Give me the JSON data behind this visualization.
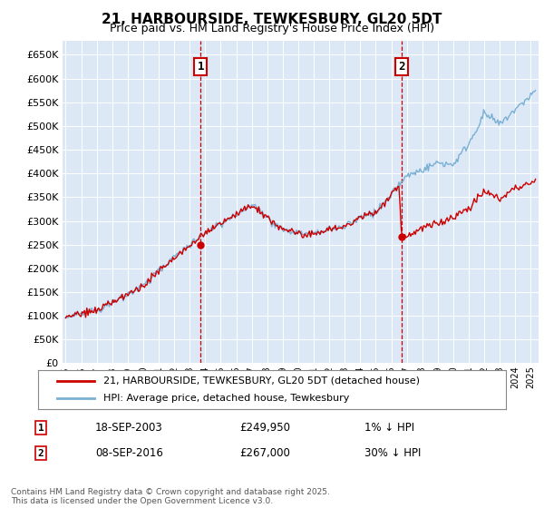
{
  "title": "21, HARBOURSIDE, TEWKESBURY, GL20 5DT",
  "subtitle": "Price paid vs. HM Land Registry's House Price Index (HPI)",
  "legend_label_red": "21, HARBOURSIDE, TEWKESBURY, GL20 5DT (detached house)",
  "legend_label_blue": "HPI: Average price, detached house, Tewkesbury",
  "footnote": "Contains HM Land Registry data © Crown copyright and database right 2025.\nThis data is licensed under the Open Government Licence v3.0.",
  "marker1_label": "1",
  "marker1_date": "18-SEP-2003",
  "marker1_price": "£249,950",
  "marker1_hpi": "1% ↓ HPI",
  "marker1_year": 2003.71,
  "marker1_value": 249950,
  "marker2_label": "2",
  "marker2_date": "08-SEP-2016",
  "marker2_price": "£267,000",
  "marker2_hpi": "30% ↓ HPI",
  "marker2_year": 2016.69,
  "marker2_value": 267000,
  "ylim": [
    0,
    680000
  ],
  "xlim": [
    1994.8,
    2025.5
  ],
  "yticks": [
    0,
    50000,
    100000,
    150000,
    200000,
    250000,
    300000,
    350000,
    400000,
    450000,
    500000,
    550000,
    600000,
    650000
  ],
  "background_color": "#dce8f5",
  "red_color": "#cc0000",
  "blue_color": "#7ab0d4",
  "grid_color": "#ffffff"
}
